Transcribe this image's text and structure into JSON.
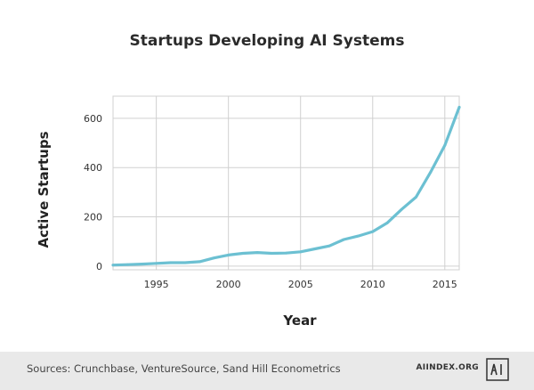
{
  "chart_data": {
    "type": "line",
    "title": "Startups Developing AI Systems",
    "xlabel": "Year",
    "ylabel": "Active Startups",
    "xlim": [
      1992,
      2016
    ],
    "ylim": [
      -15,
      690
    ],
    "x_ticks": [
      1995,
      2000,
      2005,
      2010,
      2015
    ],
    "y_ticks": [
      0,
      200,
      400,
      600
    ],
    "grid": true,
    "line_color": "#6cc0d2",
    "series": [
      {
        "x": [
          1992,
          1993,
          1994,
          1995,
          1996,
          1997,
          1998,
          1999,
          2000,
          2001,
          2002,
          2003,
          2004,
          2005,
          2006,
          2007,
          2008,
          2009,
          2010,
          2011,
          2012,
          2013,
          2014,
          2015,
          2016
        ],
        "values": [
          4,
          6,
          8,
          11,
          14,
          14,
          18,
          33,
          45,
          52,
          55,
          52,
          53,
          58,
          70,
          82,
          108,
          122,
          140,
          175,
          230,
          280,
          380,
          490,
          645
        ]
      }
    ]
  },
  "footer": {
    "source": "Sources: Crunchbase, VentureSource, Sand Hill Econometrics",
    "brand": "AIINDEX.ORG",
    "logo_icon": "ai-index-logo-icon"
  }
}
